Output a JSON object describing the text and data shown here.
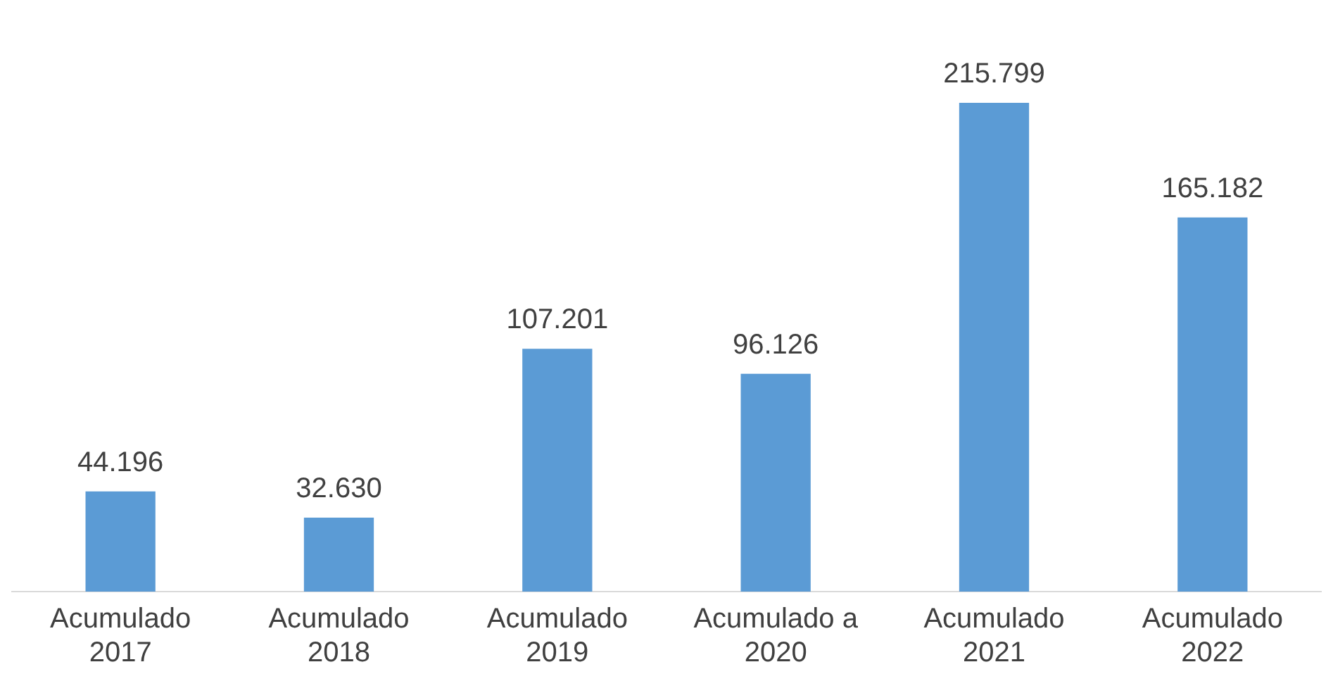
{
  "chart_data": {
    "type": "bar",
    "categories": [
      "Acumulado 2017",
      "Acumulado 2018",
      "Acumulado 2019",
      "Acumulado a 2020",
      "Acumulado 2021",
      "Acumulado 2022"
    ],
    "values": [
      44196,
      32630,
      107201,
      96126,
      215799,
      165182
    ],
    "value_labels": [
      "44.196",
      "32.630",
      "107.201",
      "96.126",
      "215.799",
      "165.182"
    ],
    "color": "#5b9bd5",
    "grid": false,
    "legend": false,
    "tick_labels": "x"
  }
}
